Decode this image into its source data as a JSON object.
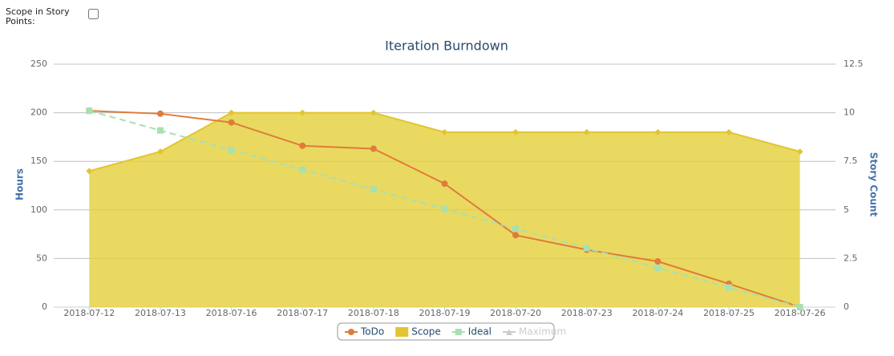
{
  "controls": {
    "scope_label": "Scope in Story Points:",
    "scope_checked": false
  },
  "chart_data": {
    "type": "line",
    "title": "Iteration Burndown",
    "categories": [
      "2018-07-12",
      "2018-07-13",
      "2018-07-16",
      "2018-07-17",
      "2018-07-18",
      "2018-07-19",
      "2018-07-20",
      "2018-07-23",
      "2018-07-24",
      "2018-07-25",
      "2018-07-26"
    ],
    "y_label": "Hours",
    "y2_label": "Story Count",
    "ylim": [
      0,
      250
    ],
    "yticks": [
      0,
      50,
      100,
      150,
      200,
      250
    ],
    "y2lim": [
      0,
      12.5
    ],
    "y2ticks": [
      0,
      2.5,
      5,
      7.5,
      10,
      12.5
    ],
    "grid": true,
    "legend": "bottom",
    "series": [
      {
        "name": "ToDo",
        "color": "#e07b39",
        "marker": "circle",
        "values": [
          202,
          199,
          190,
          166,
          163,
          127,
          74,
          59,
          47,
          24,
          0
        ]
      },
      {
        "name": "Scope",
        "color": "#e2c52f",
        "type": "area",
        "axis": "y2",
        "marker": "diamond",
        "values": [
          7,
          8,
          10,
          10,
          10,
          9,
          9,
          9,
          9,
          9,
          8
        ]
      },
      {
        "name": "Ideal",
        "color": "#a8e0b0",
        "marker": "square",
        "dashed": true,
        "values": [
          202,
          181.8,
          161.6,
          141.4,
          121.2,
          101,
          80.8,
          60.6,
          40.4,
          20.2,
          0
        ]
      },
      {
        "name": "Maximum",
        "color": "#cccccc",
        "marker": "triangle",
        "visible": false
      }
    ]
  }
}
